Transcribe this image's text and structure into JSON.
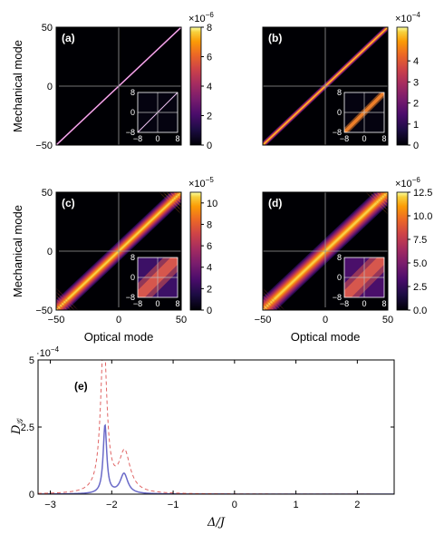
{
  "chart_data": [
    {
      "type": "heatmap",
      "panel": "(a)",
      "xlabel": "",
      "ylabel": "Mechanical mode",
      "xlim": [
        -50,
        50
      ],
      "ylim": [
        -50,
        50
      ],
      "yticks": [
        "50",
        "0",
        "−50"
      ],
      "xticks": [],
      "colorbar": {
        "exponent": "×10",
        "exp_power": "−6",
        "ticks": [
          "8",
          "6",
          "4",
          "2",
          "0"
        ],
        "max": 8
      },
      "band_width": 0.6,
      "band_falloff": "sharp",
      "edge_fringes": false,
      "inset": {
        "ticks_x": [
          "−8",
          "0",
          "8"
        ],
        "ticks_y": [
          "8",
          "0",
          "−8"
        ]
      }
    },
    {
      "type": "heatmap",
      "panel": "(b)",
      "xlabel": "",
      "ylabel": "",
      "xlim": [
        -50,
        50
      ],
      "ylim": [
        -50,
        50
      ],
      "yticks": [],
      "xticks": [],
      "colorbar": {
        "exponent": "×10",
        "exp_power": "−4",
        "ticks": [
          "4",
          "3",
          "2",
          "1",
          "0"
        ],
        "max": 5.6
      },
      "band_width": 1.4,
      "band_falloff": "medium",
      "edge_fringes": false,
      "inset": {
        "ticks_x": [
          "−8",
          "0",
          "8"
        ],
        "ticks_y": [
          "8",
          "0",
          "−8"
        ]
      }
    },
    {
      "type": "heatmap",
      "panel": "(c)",
      "xlabel": "Optical mode",
      "ylabel": "Mechanical mode",
      "xlim": [
        -50,
        50
      ],
      "ylim": [
        -50,
        50
      ],
      "yticks": [
        "50",
        "0",
        "−50"
      ],
      "xticks": [
        "−50",
        "0",
        "50"
      ],
      "colorbar": {
        "exponent": "×10",
        "exp_power": "−5",
        "ticks": [
          "10",
          "8",
          "6",
          "4",
          "2",
          "0"
        ],
        "max": 11
      },
      "band_width": 4.0,
      "band_falloff": "broad",
      "edge_fringes": true,
      "inset": {
        "ticks_x": [
          "−8",
          "0",
          "8"
        ],
        "ticks_y": [
          "8",
          "0",
          "−8"
        ]
      }
    },
    {
      "type": "heatmap",
      "panel": "(d)",
      "xlabel": "Optical mode",
      "ylabel": "",
      "xlim": [
        -50,
        50
      ],
      "ylim": [
        -50,
        50
      ],
      "yticks": [],
      "xticks": [
        "−50",
        "0",
        "50"
      ],
      "colorbar": {
        "exponent": "×10",
        "exp_power": "−6",
        "ticks": [
          "12.5",
          "10.0",
          "7.5",
          "5.0",
          "2.5",
          "0.0"
        ],
        "max": 12.5
      },
      "band_width": 5.0,
      "band_falloff": "broad",
      "edge_fringes": true,
      "inset": {
        "ticks_x": [
          "−8",
          "0",
          "8"
        ],
        "ticks_y": [
          "8",
          "0",
          "−8"
        ]
      }
    },
    {
      "type": "line",
      "panel": "(e)",
      "xlabel_sym": "Δ/J",
      "ylabel_sym": "D",
      "ylabel_sub": "𝒢",
      "scale_label": "·10",
      "scale_power": "−4",
      "xlim": [
        -3.2,
        2.6
      ],
      "ylim": [
        0,
        5
      ],
      "xticks": [
        "−3",
        "−2",
        "−1",
        "0",
        "1",
        "2"
      ],
      "yticks": [
        "0",
        "2.5",
        "5"
      ],
      "series": [
        {
          "style": "solid",
          "color": "#6a6ac8",
          "peaks": [
            {
              "x": -2.11,
              "height": 2.55,
              "width": 0.035
            },
            {
              "x": -1.8,
              "height": 0.75,
              "width": 0.075
            }
          ]
        },
        {
          "style": "dashed",
          "color": "#e06464",
          "peaks": [
            {
              "x": -2.13,
              "height": 5.8,
              "width": 0.06
            },
            {
              "x": -1.79,
              "height": 1.5,
              "width": 0.11
            }
          ]
        }
      ]
    }
  ]
}
